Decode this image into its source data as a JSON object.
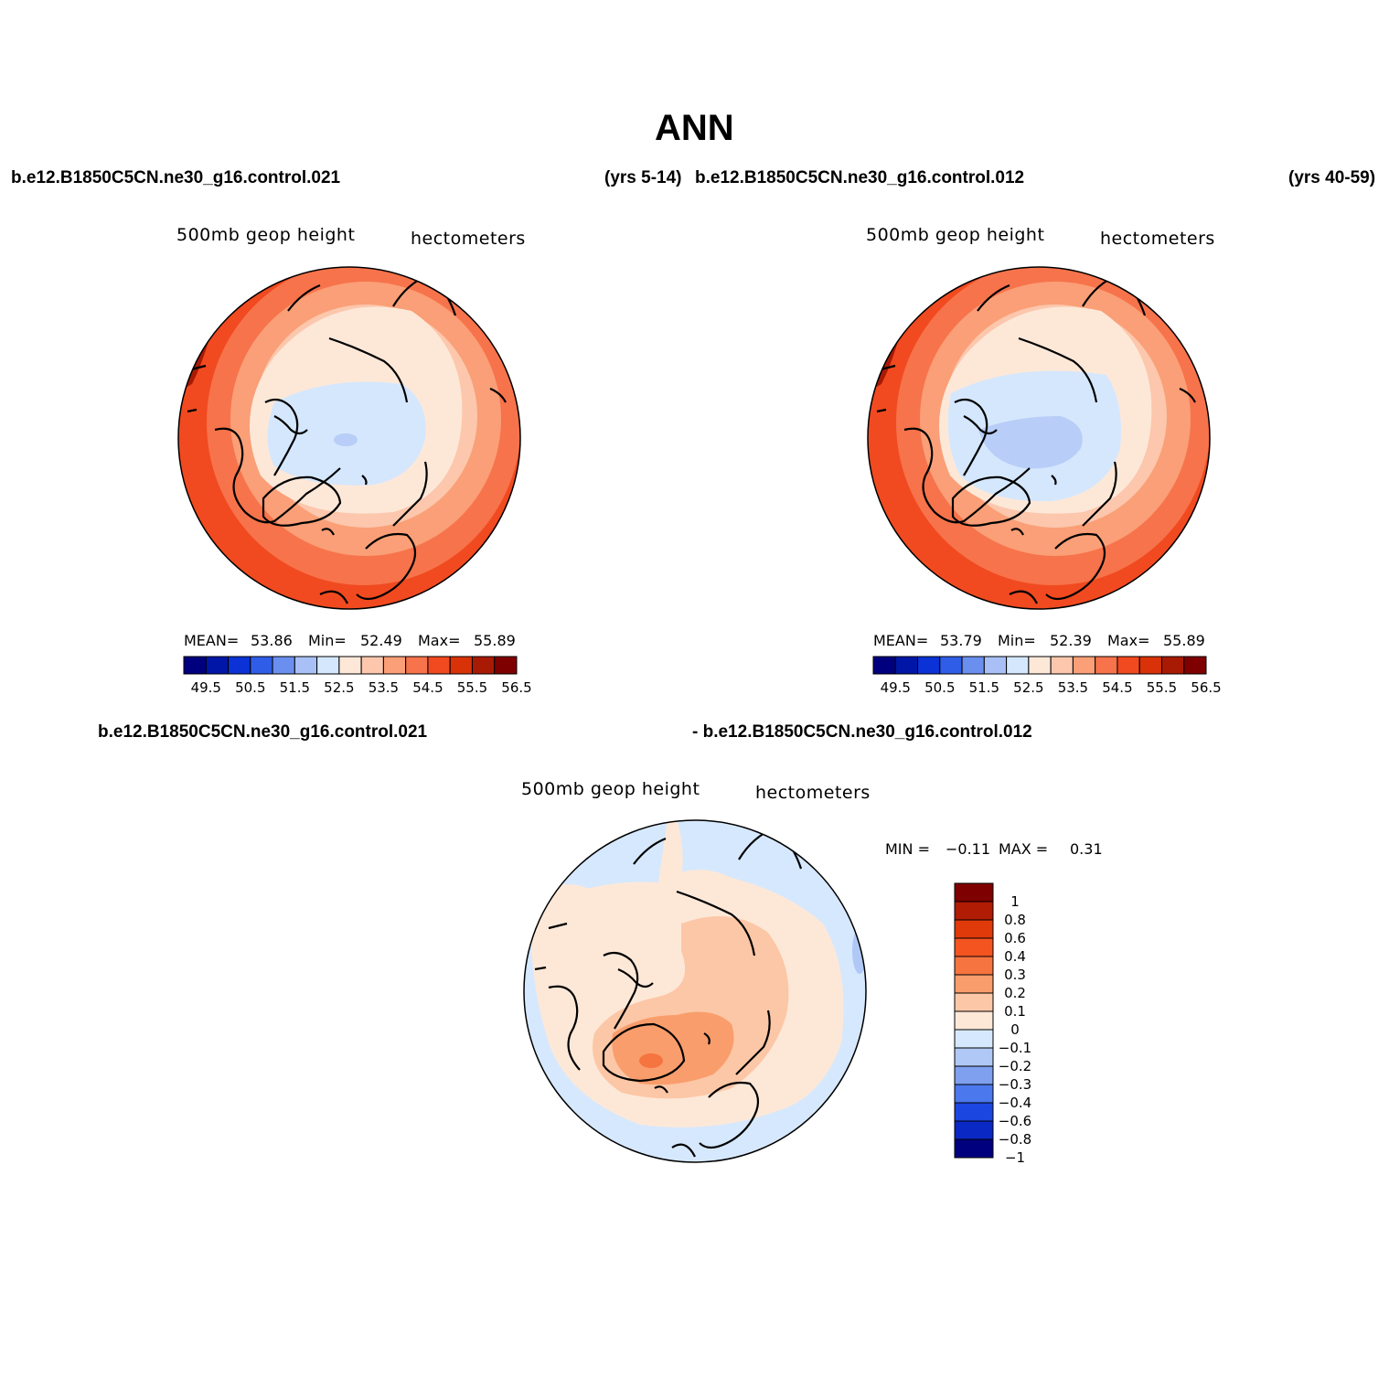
{
  "title": "ANN",
  "header": {
    "case1": "b.e12.B1850C5CN.ne30_g16.control.021",
    "years1": "(yrs 5-14)",
    "case2": "b.e12.B1850C5CN.ne30_g16.control.012",
    "years2": "(yrs 40-59)",
    "diff_case1": "b.e12.B1850C5CN.ne30_g16.control.021",
    "diff_case2": "- b.e12.B1850C5CN.ne30_g16.control.012"
  },
  "panels": [
    {
      "variable": "500mb  geop  height",
      "units": "hectometers",
      "mean_label": "MEAN=",
      "mean": "53.86",
      "min_label": "Min=",
      "min": "52.49",
      "max_label": "Max=",
      "max": "55.89"
    },
    {
      "variable": "500mb  geop  height",
      "units": "hectometers",
      "mean_label": "MEAN=",
      "mean": "53.79",
      "min_label": "Min=",
      "min": "52.39",
      "max_label": "Max=",
      "max": "55.89"
    },
    {
      "variable": "500mb  geop  height",
      "units": "hectometers",
      "min_label": "MIN =",
      "min": "−0.11",
      "max_label": "MAX =",
      "max": "0.31"
    }
  ],
  "colorbar_horizontal": {
    "colors": [
      "#00007f",
      "#0016a6",
      "#0a32d6",
      "#2f5de8",
      "#6a8fef",
      "#a8c0f5",
      "#d5e7fd",
      "#fde8d8",
      "#fcc7ac",
      "#fa9f77",
      "#f7734b",
      "#f14a20",
      "#d93208",
      "#a81a04",
      "#7f0000"
    ],
    "tick_labels": [
      "49.5",
      "50.5",
      "51.5",
      "52.5",
      "53.5",
      "54.5",
      "55.5",
      "56.5"
    ]
  },
  "colorbar_vertical": {
    "colors": [
      "#7f0000",
      "#b01c04",
      "#e03a0a",
      "#f45420",
      "#f6743f",
      "#f99d6c",
      "#fcc7a6",
      "#fde8d8",
      "#d6e8fd",
      "#b0c8f5",
      "#7ea0ee",
      "#4b78ec",
      "#1c46e0",
      "#0a28c4",
      "#00007f"
    ],
    "tick_labels": [
      "1",
      "0.8",
      "0.6",
      "0.4",
      "0.3",
      "0.2",
      "0.1",
      "0",
      "−0.1",
      "−0.2",
      "−0.3",
      "−0.4",
      "−0.6",
      "−0.8",
      "−1"
    ]
  },
  "map_colors": {
    "outer": "#d93208",
    "ring1": "#f14a20",
    "ring2": "#f7734b",
    "ring3": "#fa9f77",
    "ring4": "#fcc7ac",
    "ring5": "#fde8d8",
    "low1": "#d5e7fd",
    "low2": "#b8cdf7",
    "low3": "#a8c0f5",
    "darkest": "#a81a04"
  },
  "diff_colors": {
    "neg": "#d6e8fd",
    "zero": "#fde8d8",
    "pos1": "#fcc7a6",
    "pos2": "#f99d6c",
    "pos3": "#f6743f",
    "neg2": "#b0c8f5"
  }
}
